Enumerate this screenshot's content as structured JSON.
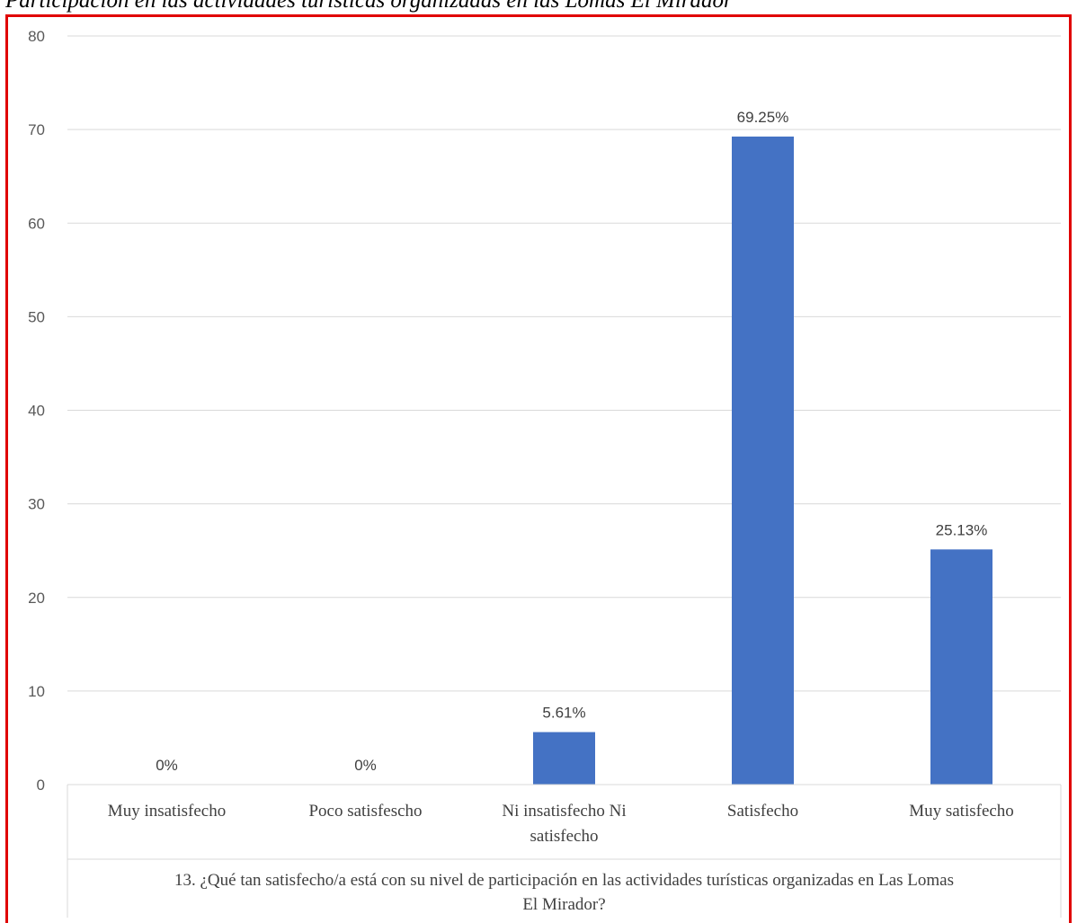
{
  "caption": "Participación en las actividades turísticas organizadas en las Lomas El Mirador",
  "chart_data": {
    "type": "bar",
    "categories": [
      [
        "Muy insatisfecho"
      ],
      [
        "Poco satisfescho"
      ],
      [
        "Ni insatisfecho Ni",
        "satisfecho"
      ],
      [
        "Satisfecho"
      ],
      [
        "Muy satisfecho"
      ]
    ],
    "values": [
      0,
      0,
      5.61,
      69.25,
      25.13
    ],
    "data_labels": [
      "0%",
      "0%",
      "5.61%",
      "69.25%",
      "25.13%"
    ],
    "xlabel": [
      "13. ¿Qué tan satisfecho/a está con su nivel de participación en las actividades turísticas organizadas en Las Lomas",
      "El Mirador?"
    ],
    "ylabel": "",
    "ylim": [
      0,
      80
    ],
    "yticks": [
      0,
      10,
      20,
      30,
      40,
      50,
      60,
      70,
      80
    ],
    "grid": true,
    "bar_color": "#4472c4",
    "grid_color": "#d9d9d9",
    "frame_color": "#e00000"
  }
}
